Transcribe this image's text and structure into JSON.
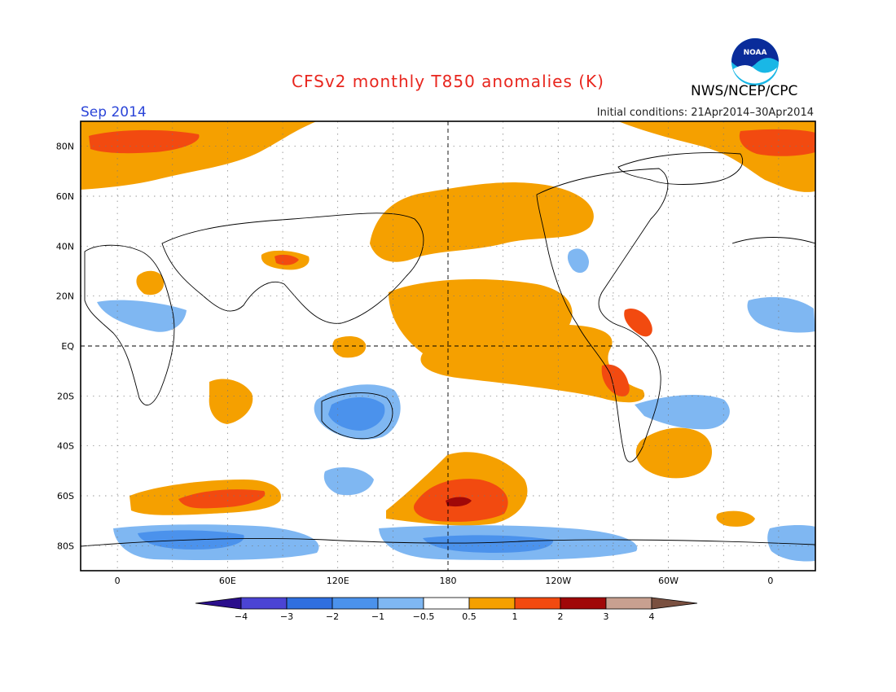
{
  "header": {
    "title": "CFSv2 monthly T850 anomalies (K)",
    "valid_month": "Sep 2014",
    "initial_conditions": "Initial conditions: 21Apr2014–30Apr2014",
    "agency": "NWS/NCEP/CPC",
    "logo_text": "NOAA"
  },
  "map": {
    "lat_labels": [
      "80N",
      "60N",
      "40N",
      "20N",
      "EQ",
      "20S",
      "40S",
      "60S",
      "80S"
    ],
    "lon_labels": [
      "0",
      "60E",
      "120E",
      "180",
      "120W",
      "60W",
      "0"
    ],
    "lon_range": [
      -20,
      380
    ],
    "lat_range": [
      -90,
      90
    ],
    "grid": "dotted 20deg lat / 30deg lon",
    "reference_lines": [
      "equator",
      "dateline"
    ]
  },
  "colorbar": {
    "ticks": [
      "−4",
      "−3",
      "−2",
      "−1",
      "−0.5",
      "0.5",
      "1",
      "2",
      "3",
      "4"
    ],
    "colors": [
      "#2b0f8c",
      "#4b44d4",
      "#2f6fe0",
      "#4b92ec",
      "#7fb7f2",
      "#ffffff",
      "#f5a000",
      "#f24a10",
      "#a00808",
      "#c8a090",
      "#7a5040"
    ]
  },
  "anomaly_regions": [
    {
      "name": "Arctic Atlantic warm",
      "level": "1"
    },
    {
      "name": "Arctic Atlantic strong warm",
      "level": "2"
    },
    {
      "name": "North Pacific warm",
      "level": "1"
    },
    {
      "name": "Equatorial Pacific warm",
      "level": "1"
    },
    {
      "name": "Peru coast strong warm",
      "level": "2"
    },
    {
      "name": "Southern Ocean Pacific warm",
      "level": "1"
    },
    {
      "name": "Southern Ocean Pacific very strong warm",
      "level": "3"
    },
    {
      "name": "Southern Indian Ocean warm",
      "level": "2"
    },
    {
      "name": "Australia cool",
      "level": "-2"
    },
    {
      "name": "Antarctic coast cool",
      "level": "-2"
    }
  ]
}
